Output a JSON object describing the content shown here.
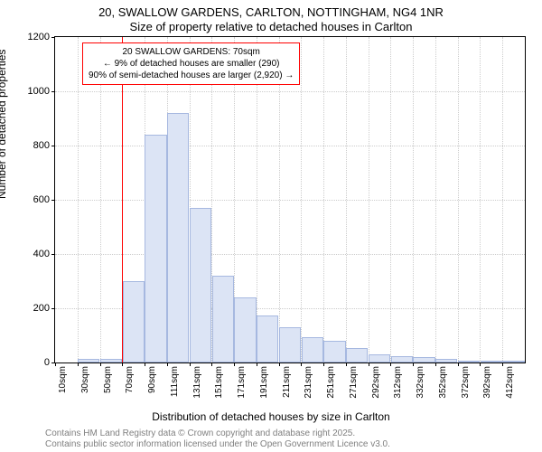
{
  "title_line1": "20, SWALLOW GARDENS, CARLTON, NOTTINGHAM, NG4 1NR",
  "title_line2": "Size of property relative to detached houses in Carlton",
  "ylabel": "Number of detached properties",
  "xlabel": "Distribution of detached houses by size in Carlton",
  "credits_line1": "Contains HM Land Registry data © Crown copyright and database right 2025.",
  "credits_line2": "Contains public sector information licensed under the Open Government Licence v3.0.",
  "annotation": {
    "line1": "20 SWALLOW GARDENS: 70sqm",
    "line2": "← 9% of detached houses are smaller (290)",
    "line3": "90% of semi-detached houses are larger (2,920) →"
  },
  "chart": {
    "type": "histogram",
    "bar_fill": "#dce4f5",
    "bar_border": "#a6b8e0",
    "marker_color": "#ff0000",
    "annotation_border": "#ff0000",
    "grid_color": "#cccccc",
    "axis_color": "#000000",
    "background": "#ffffff",
    "ylim": [
      0,
      1200
    ],
    "ytick_step": 200,
    "xtick_labels": [
      "10sqm",
      "30sqm",
      "50sqm",
      "70sqm",
      "90sqm",
      "111sqm",
      "131sqm",
      "151sqm",
      "171sqm",
      "191sqm",
      "211sqm",
      "231sqm",
      "251sqm",
      "271sqm",
      "292sqm",
      "312sqm",
      "332sqm",
      "352sqm",
      "372sqm",
      "392sqm",
      "412sqm"
    ],
    "bars": [
      0,
      15,
      15,
      300,
      840,
      920,
      570,
      320,
      240,
      175,
      130,
      95,
      80,
      55,
      30,
      25,
      20,
      12,
      8,
      5,
      5
    ],
    "marker_x_index": 3,
    "title_fontsize": 13,
    "label_fontsize": 12,
    "tick_fontsize": 11,
    "credits_color": "#808080"
  }
}
